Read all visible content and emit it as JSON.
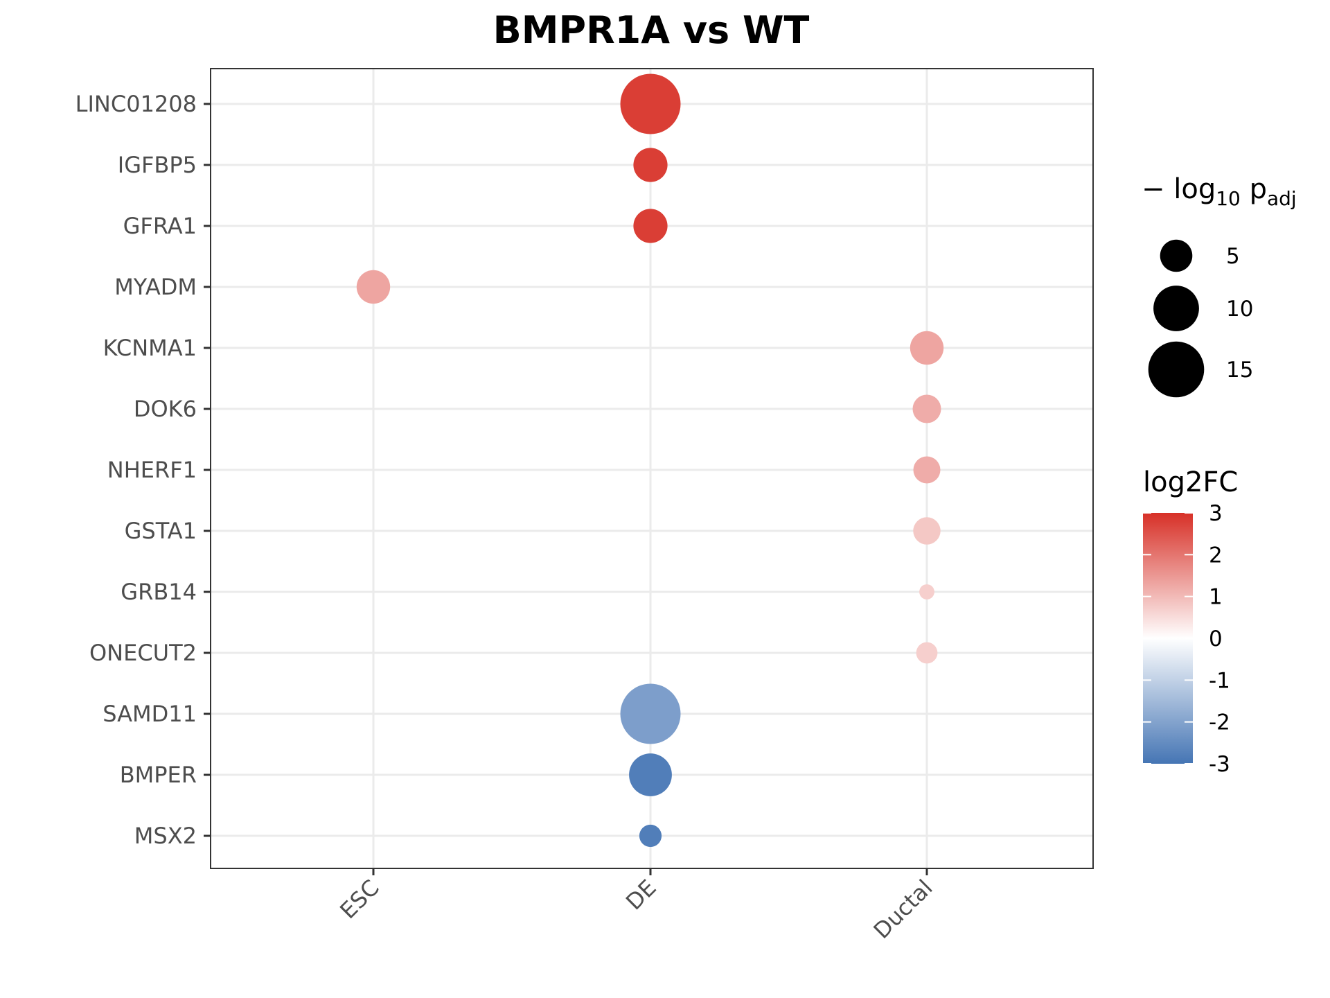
{
  "chart_data": {
    "type": "scatter",
    "title": "BMPR1A vs WT",
    "xlabel": "",
    "ylabel": "",
    "x_categories": [
      "ESC",
      "DE",
      "Ductal"
    ],
    "y_categories": [
      "LINC01208",
      "IGFBP5",
      "GFRA1",
      "MYADM",
      "KCNMA1",
      "DOK6",
      "NHERF1",
      "GSTA1",
      "GRB14",
      "ONECUT2",
      "SAMD11",
      "BMPER",
      "MSX2"
    ],
    "points": [
      {
        "gene": "LINC01208",
        "group": "DE",
        "log2FC": 2.8,
        "neg_log10_padj": 17.5
      },
      {
        "gene": "IGFBP5",
        "group": "DE",
        "log2FC": 2.8,
        "neg_log10_padj": 5.6
      },
      {
        "gene": "GFRA1",
        "group": "DE",
        "log2FC": 2.8,
        "neg_log10_padj": 5.6
      },
      {
        "gene": "MYADM",
        "group": "ESC",
        "log2FC": 1.3,
        "neg_log10_padj": 5.4
      },
      {
        "gene": "KCNMA1",
        "group": "Ductal",
        "log2FC": 1.3,
        "neg_log10_padj": 5.4
      },
      {
        "gene": "DOK6",
        "group": "Ductal",
        "log2FC": 1.2,
        "neg_log10_padj": 3.9
      },
      {
        "gene": "NHERF1",
        "group": "Ductal",
        "log2FC": 1.2,
        "neg_log10_padj": 3.5
      },
      {
        "gene": "GSTA1",
        "group": "Ductal",
        "log2FC": 0.8,
        "neg_log10_padj": 3.6
      },
      {
        "gene": "GRB14",
        "group": "Ductal",
        "log2FC": 0.7,
        "neg_log10_padj": 1.1
      },
      {
        "gene": "ONECUT2",
        "group": "Ductal",
        "log2FC": 0.7,
        "neg_log10_padj": 2.2
      },
      {
        "gene": "SAMD11",
        "group": "DE",
        "log2FC": -2.1,
        "neg_log10_padj": 17.5
      },
      {
        "gene": "BMPER",
        "group": "DE",
        "log2FC": -2.8,
        "neg_log10_padj": 8.8
      },
      {
        "gene": "MSX2",
        "group": "DE",
        "log2FC": -2.8,
        "neg_log10_padj": 2.4
      }
    ],
    "size_legend": {
      "title_main": "− log",
      "title_sub": "10",
      "title_p": " p",
      "title_psub": "adj",
      "values": [
        5,
        10,
        15
      ]
    },
    "color_legend": {
      "title": "log2FC",
      "min": -3,
      "max": 3,
      "ticks": [
        3,
        2,
        1,
        0,
        -1,
        -2,
        -3
      ],
      "colors": {
        "low": "#4575b4",
        "mid": "#ffffff",
        "high": "#d73027"
      }
    },
    "grid": true,
    "legend_position": "right"
  }
}
